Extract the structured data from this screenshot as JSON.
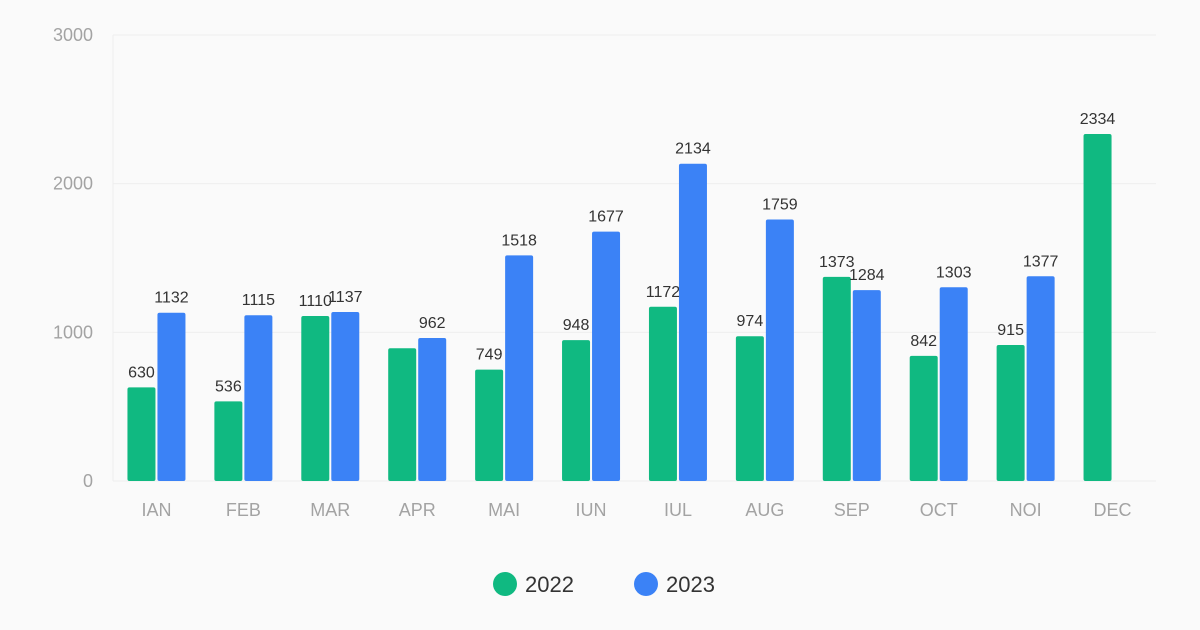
{
  "chart_data": {
    "type": "bar",
    "categories": [
      "IAN",
      "FEB",
      "MAR",
      "APR",
      "MAI",
      "IUN",
      "IUL",
      "AUG",
      "SEP",
      "OCT",
      "NOI",
      "DEC"
    ],
    "series": [
      {
        "name": "2022",
        "color": "#10b981",
        "values": [
          630,
          536,
          1110,
          893,
          749,
          948,
          1172,
          974,
          1373,
          842,
          915,
          2334
        ],
        "labels": [
          630,
          536,
          1110,
          null,
          749,
          948,
          1172,
          974,
          1373,
          842,
          915,
          2334
        ]
      },
      {
        "name": "2023",
        "color": "#3b82f6",
        "values": [
          1132,
          1115,
          1137,
          962,
          1518,
          1677,
          2134,
          1759,
          1284,
          1303,
          1377,
          null
        ],
        "labels": [
          1132,
          1115,
          1137,
          962,
          1518,
          1677,
          2134,
          1759,
          1284,
          1303,
          1377,
          null
        ]
      }
    ],
    "yticks": [
      0,
      1000,
      2000,
      3000
    ],
    "ylim": [
      0,
      3000
    ],
    "grid": true,
    "legend": "bottom"
  }
}
